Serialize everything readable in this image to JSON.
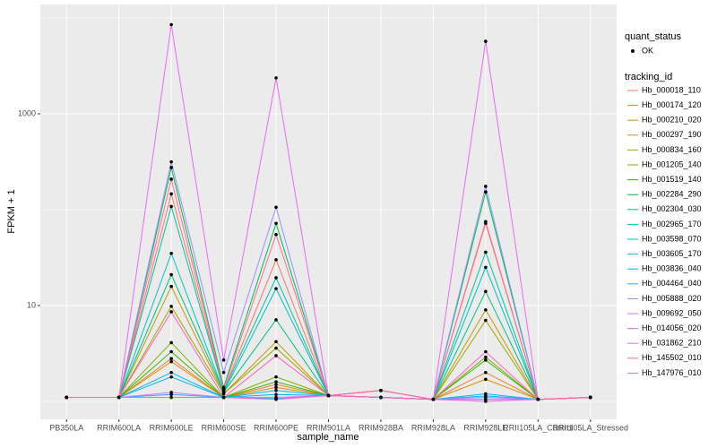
{
  "chart_data": {
    "type": "line",
    "x_label": "sample_name",
    "y_label": "FPKM + 1",
    "y_scale": "log",
    "grid": true,
    "categories": [
      "PB350LA",
      "RRIM600LA",
      "RRIM600LE",
      "RRIM600SE",
      "RRIM600PE",
      "RRIM901LA",
      "RRIM928BA",
      "RRIM928LA",
      "RRIM928LE",
      "RRII105LA_Control",
      "RRII105LA_Stressed"
    ],
    "ylim": [
      0.65,
      13800
    ],
    "yticks": [
      10,
      1000
    ],
    "point_legend_title": "quant_status",
    "point_legend_label": "OK",
    "point_color": "#000000",
    "legend_title": "tracking_id",
    "series": [
      {
        "name": "Hb_000018_110",
        "color": "#F8766D",
        "values": [
          1.1,
          1.1,
          146,
          1.3,
          30,
          1.15,
          1.3,
          1.05,
          72,
          1.05,
          1.1
        ]
      },
      {
        "name": "Hb_000174_120",
        "color": "#EA8331",
        "values": [
          1.1,
          1.1,
          2.8,
          1.1,
          1.5,
          1.15,
          1.1,
          1.05,
          2.0,
          1.05,
          1.1
        ]
      },
      {
        "name": "Hb_000210_020",
        "color": "#D89000",
        "values": [
          1.1,
          1.1,
          2.6,
          1.1,
          1.4,
          1.15,
          1.1,
          1.05,
          1.7,
          1.05,
          1.1
        ]
      },
      {
        "name": "Hb_000297_190",
        "color": "#C09B00",
        "values": [
          1.1,
          1.1,
          15.8,
          1.2,
          4.2,
          1.15,
          1.1,
          1.05,
          9,
          1.05,
          1.1
        ]
      },
      {
        "name": "Hb_000834_160",
        "color": "#A3A500",
        "values": [
          1.1,
          1.1,
          9.8,
          1.2,
          3.6,
          1.15,
          1.1,
          1.05,
          7,
          1.05,
          1.1
        ]
      },
      {
        "name": "Hb_001205_140",
        "color": "#7CAE00",
        "values": [
          1.1,
          1.1,
          4.1,
          1.1,
          1.8,
          1.15,
          1.1,
          1.05,
          2.9,
          1.05,
          1.1
        ]
      },
      {
        "name": "Hb_001519_140",
        "color": "#39B600",
        "values": [
          1.1,
          1.1,
          3.3,
          1.1,
          1.6,
          1.15,
          1.1,
          1.05,
          2.7,
          1.05,
          1.1
        ]
      },
      {
        "name": "Hb_002284_290",
        "color": "#00BB4E",
        "values": [
          1.1,
          1.1,
          275,
          1.4,
          72,
          1.15,
          1.3,
          1.05,
          153,
          1.05,
          1.1
        ]
      },
      {
        "name": "Hb_002304_030",
        "color": "#00BF7D",
        "values": [
          1.1,
          1.1,
          21,
          1.25,
          7.1,
          1.15,
          1.1,
          1.05,
          14,
          1.05,
          1.1
        ]
      },
      {
        "name": "Hb_002965_170",
        "color": "#00C1A3",
        "values": [
          1.1,
          1.1,
          108,
          1.3,
          19.5,
          1.15,
          1.1,
          1.05,
          36,
          1.05,
          1.1
        ]
      },
      {
        "name": "Hb_003598_070",
        "color": "#00BFC4",
        "values": [
          1.1,
          1.1,
          35,
          1.25,
          15,
          1.15,
          1.1,
          1.05,
          25,
          1.05,
          1.1
        ]
      },
      {
        "name": "Hb_003605_170",
        "color": "#00BAE0",
        "values": [
          1.1,
          1.1,
          2.0,
          1.1,
          1.3,
          1.15,
          1.1,
          1.05,
          1.2,
          1.05,
          1.1
        ]
      },
      {
        "name": "Hb_003836_040",
        "color": "#00B0F6",
        "values": [
          1.1,
          1.1,
          1.8,
          1.1,
          1.18,
          1.15,
          1.1,
          1.05,
          1.14,
          1.05,
          1.1
        ]
      },
      {
        "name": "Hb_004464_040",
        "color": "#35A2FF",
        "values": [
          1.1,
          1.1,
          1.18,
          1.1,
          1.07,
          1.15,
          1.1,
          1.05,
          1.05,
          1.05,
          1.1
        ]
      },
      {
        "name": "Hb_005888_020",
        "color": "#9590FF",
        "values": [
          1.1,
          1.1,
          315,
          2.0,
          106,
          1.15,
          1.3,
          1.05,
          175,
          1.05,
          1.1
        ]
      },
      {
        "name": "Hb_009692_050",
        "color": "#C77CFF",
        "values": [
          1.1,
          1.1,
          1.24,
          1.1,
          1.1,
          1.15,
          1.1,
          1.05,
          1.1,
          1.05,
          1.1
        ]
      },
      {
        "name": "Hb_014056_020",
        "color": "#E76BF3",
        "values": [
          1.1,
          1.1,
          8500,
          2.7,
          2370,
          1.15,
          1.3,
          1.05,
          5700,
          1.05,
          1.1
        ]
      },
      {
        "name": "Hb_031862_210",
        "color": "#FA62DB",
        "values": [
          1.1,
          1.1,
          1.1,
          1.1,
          1.05,
          1.15,
          1.1,
          1.05,
          1.0,
          1.05,
          1.1
        ]
      },
      {
        "name": "Hb_145502_010",
        "color": "#FF62BC",
        "values": [
          1.1,
          1.1,
          8.6,
          1.1,
          3.0,
          1.15,
          1.1,
          1.05,
          3.3,
          1.05,
          1.1
        ]
      },
      {
        "name": "Hb_147976_010",
        "color": "#FF6C91",
        "values": [
          1.1,
          1.1,
          208,
          1.35,
          55,
          1.15,
          1.3,
          1.05,
          75,
          1.05,
          1.1
        ]
      }
    ]
  }
}
